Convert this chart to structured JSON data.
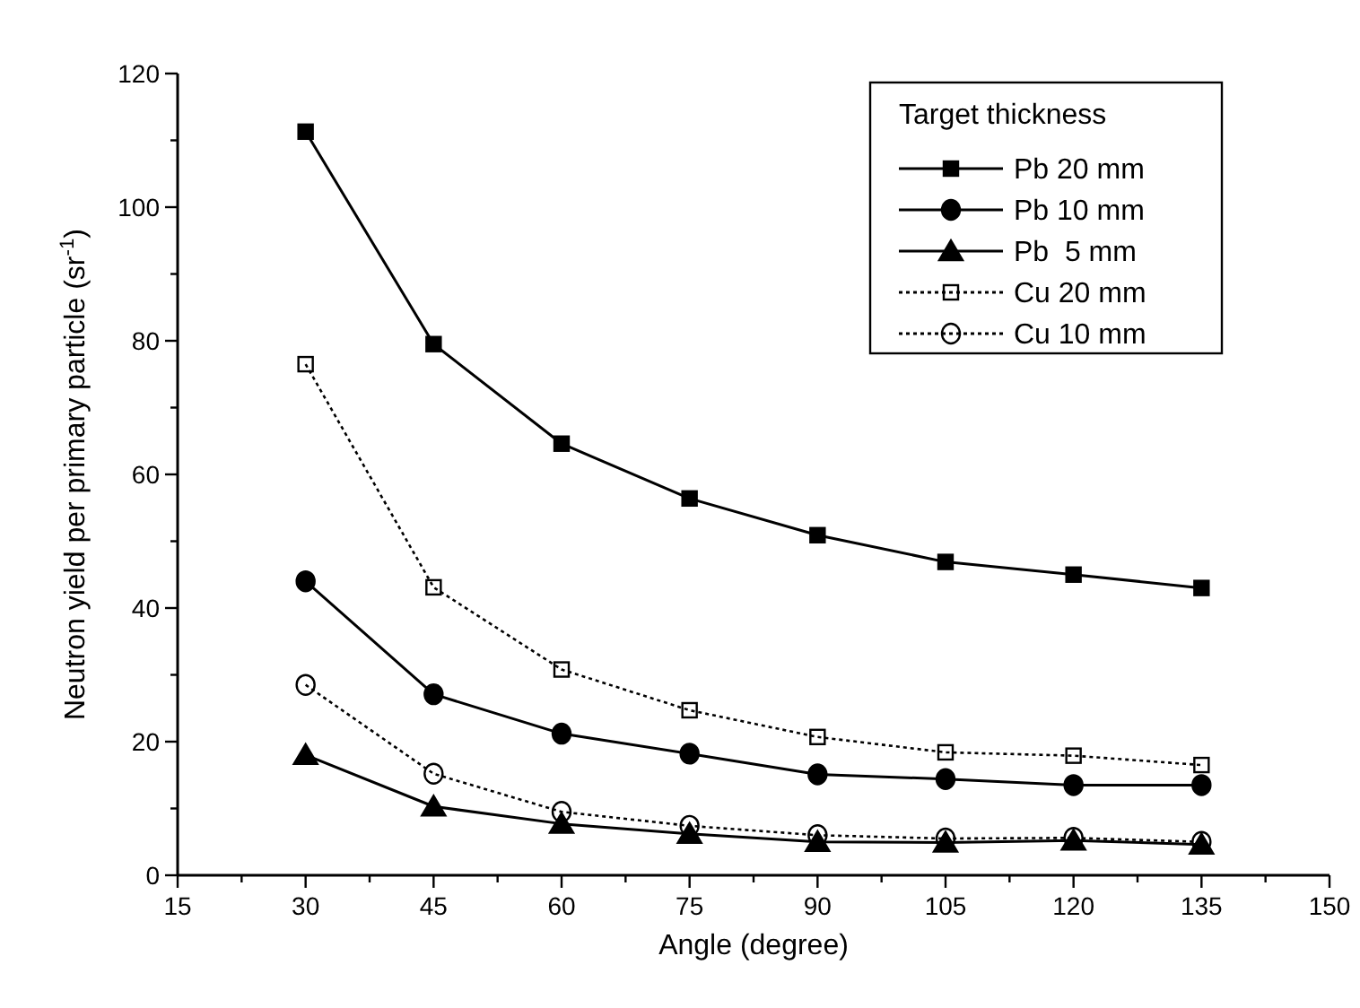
{
  "chart_data": {
    "type": "line",
    "xlabel": "Angle (degree)",
    "ylabel": "Neutron yield per primary particle (sr$^{-1}$)",
    "legend_title": "Target thickness",
    "legend": "top right",
    "grid": false,
    "x": [
      30,
      45,
      60,
      75,
      90,
      105,
      120,
      135
    ],
    "xlim": [
      15,
      150
    ],
    "xticks": [
      15,
      {
        "value": 22.5,
        "label": null
      },
      30,
      {
        "value": 37.5,
        "label": null
      },
      45,
      {
        "value": 52.5,
        "label": null
      },
      60,
      {
        "value": 67.5,
        "label": null
      },
      75,
      {
        "value": 82.5,
        "label": null
      },
      90,
      {
        "value": 97.5,
        "label": null
      },
      105,
      {
        "value": 112.5,
        "label": null
      },
      120,
      {
        "value": 127.5,
        "label": null
      },
      135,
      {
        "value": 142.5,
        "label": null
      },
      150
    ],
    "ylim": [
      0,
      120
    ],
    "yticks": [
      0,
      {
        "value": 10,
        "label": null
      },
      20,
      {
        "value": 30,
        "label": null
      },
      40,
      {
        "value": 50,
        "label": null
      },
      60,
      {
        "value": 70,
        "label": null
      },
      80,
      {
        "value": 90,
        "label": null
      },
      100,
      {
        "value": 110,
        "label": null
      },
      120
    ],
    "series": [
      {
        "name": "Pb 20 mm",
        "color": "#000000",
        "marker": "square",
        "line_style": "solid",
        "values": [
          111.3,
          79.5,
          64.6,
          56.4,
          50.9,
          46.9,
          45,
          43
        ]
      },
      {
        "name": "Pb 10 mm",
        "color": "#000000",
        "marker": "circle",
        "line_style": "solid",
        "values": [
          44,
          27.1,
          21.2,
          18.2,
          15.1,
          14.4,
          13.5,
          13.5
        ]
      },
      {
        "name": "Pb  5 mm",
        "color": "#000000",
        "marker": "triangle",
        "line_style": "solid",
        "values": [
          18,
          10.3,
          7.7,
          6.2,
          5,
          4.9,
          5.2,
          4.6
        ]
      },
      {
        "name": "Cu 20 mm",
        "color": "#000000",
        "marker": "square",
        "line_style": "dotted",
        "values": [
          76.5,
          43.1,
          30.8,
          24.7,
          20.7,
          18.4,
          17.9,
          16.5
        ]
      },
      {
        "name": "Cu 10 mm",
        "color": "#000000",
        "marker": "circle",
        "line_style": "dotted",
        "values": [
          28.5,
          15.2,
          9.5,
          7.4,
          6,
          5.5,
          5.6,
          5
        ]
      }
    ]
  }
}
